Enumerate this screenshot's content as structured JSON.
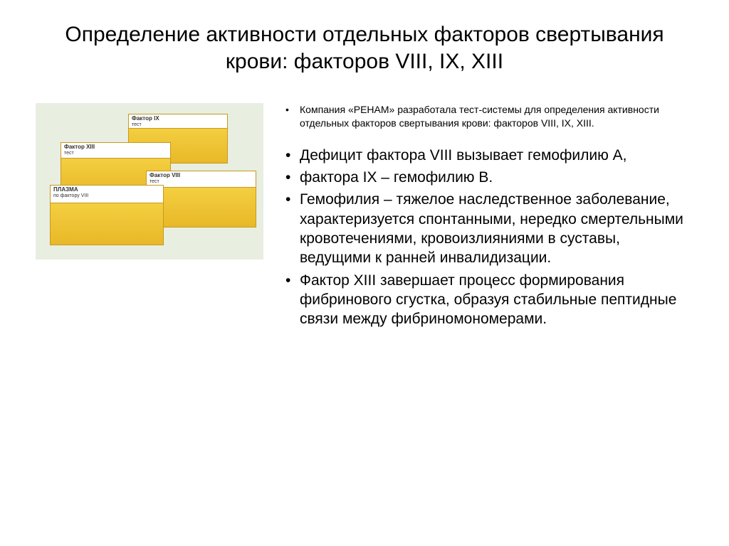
{
  "title": "Определение активности отдельных факторов свертывания крови: факторов VIII, IX, XIII",
  "boxes": {
    "b1_label": "Фактор IX",
    "b1_sub": "тест",
    "b2_label": "Фактор XIII",
    "b2_sub": "тест",
    "b3_label": "Фактор VIII",
    "b3_sub": "тест",
    "b4_label": "ПЛАЗМА",
    "b4_sub": "по фактору VIII"
  },
  "bullets": {
    "intro": "Компания «РЕНАМ» разработала тест-системы для определения активности отдельных факторов свертывания крови: факторов VIII, IX, XIII.",
    "b1": "Дефицит фактора VIII вызывает гемофилию А,",
    "b2": "фактора IX – гемофилию B.",
    "b3": "Гемофилия – тяжелое наследственное заболевание, характеризуется спонтанными, нередко смертельными кровотечениями, кровоизлияниями в суставы, ведущими к ранней инвалидизации.",
    "b4": "Фактор XIII завершает процесс формирования фибринового сгустка, образуя стабильные пептидные связи между фибриномономерами."
  },
  "style": {
    "title_fontsize": 30,
    "intro_fontsize": 14,
    "main_fontsize": 21,
    "text_color": "#000000",
    "bg_color": "#ffffff",
    "image_bg": "#e8eee0",
    "box_gradient_top": "#f8d94a",
    "box_gradient_bottom": "#e8b828",
    "box_border": "#c89820"
  }
}
